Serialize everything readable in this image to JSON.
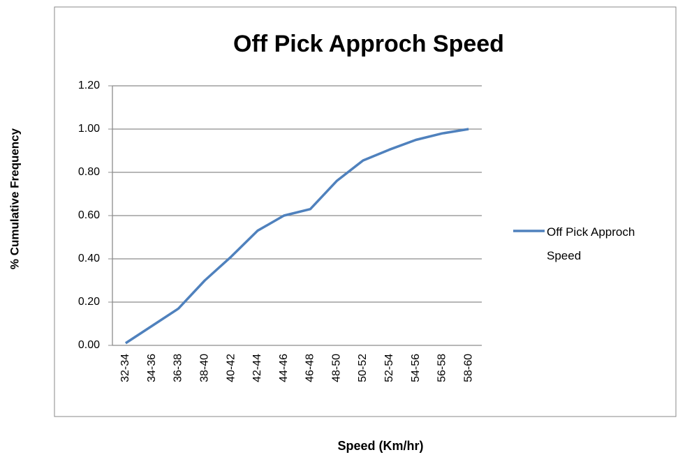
{
  "chart_data": {
    "type": "line",
    "title": "Off Pick Approch Speed",
    "x_label": "Speed (Km/hr)",
    "y_label": "% Cumulative  Frequency",
    "categories": [
      "32-34",
      "34-36",
      "36-38",
      "38-40",
      "40-42",
      "42-44",
      "44-46",
      "46-48",
      "48-50",
      "50-52",
      "52-54",
      "54-56",
      "56-58",
      "58-60"
    ],
    "series": [
      {
        "name": "Off Pick Approch Speed",
        "color": "#4f81bd",
        "values": [
          0.01,
          0.09,
          0.17,
          0.3,
          0.41,
          0.53,
          0.6,
          0.63,
          0.76,
          0.855,
          0.905,
          0.95,
          0.98,
          1.0
        ]
      }
    ],
    "ylim": [
      0,
      1.2
    ],
    "yticks": [
      {
        "value": 0,
        "label": "0.00"
      },
      {
        "value": 0.2,
        "label": "0.20"
      },
      {
        "value": 0.4,
        "label": "0.40"
      },
      {
        "value": 0.6,
        "label": "0.60"
      },
      {
        "value": 0.8,
        "label": "0.80"
      },
      {
        "value": 1.0,
        "label": "1.00"
      },
      {
        "value": 1.2,
        "label": "1.20"
      }
    ],
    "grid": true,
    "legend": "right"
  }
}
